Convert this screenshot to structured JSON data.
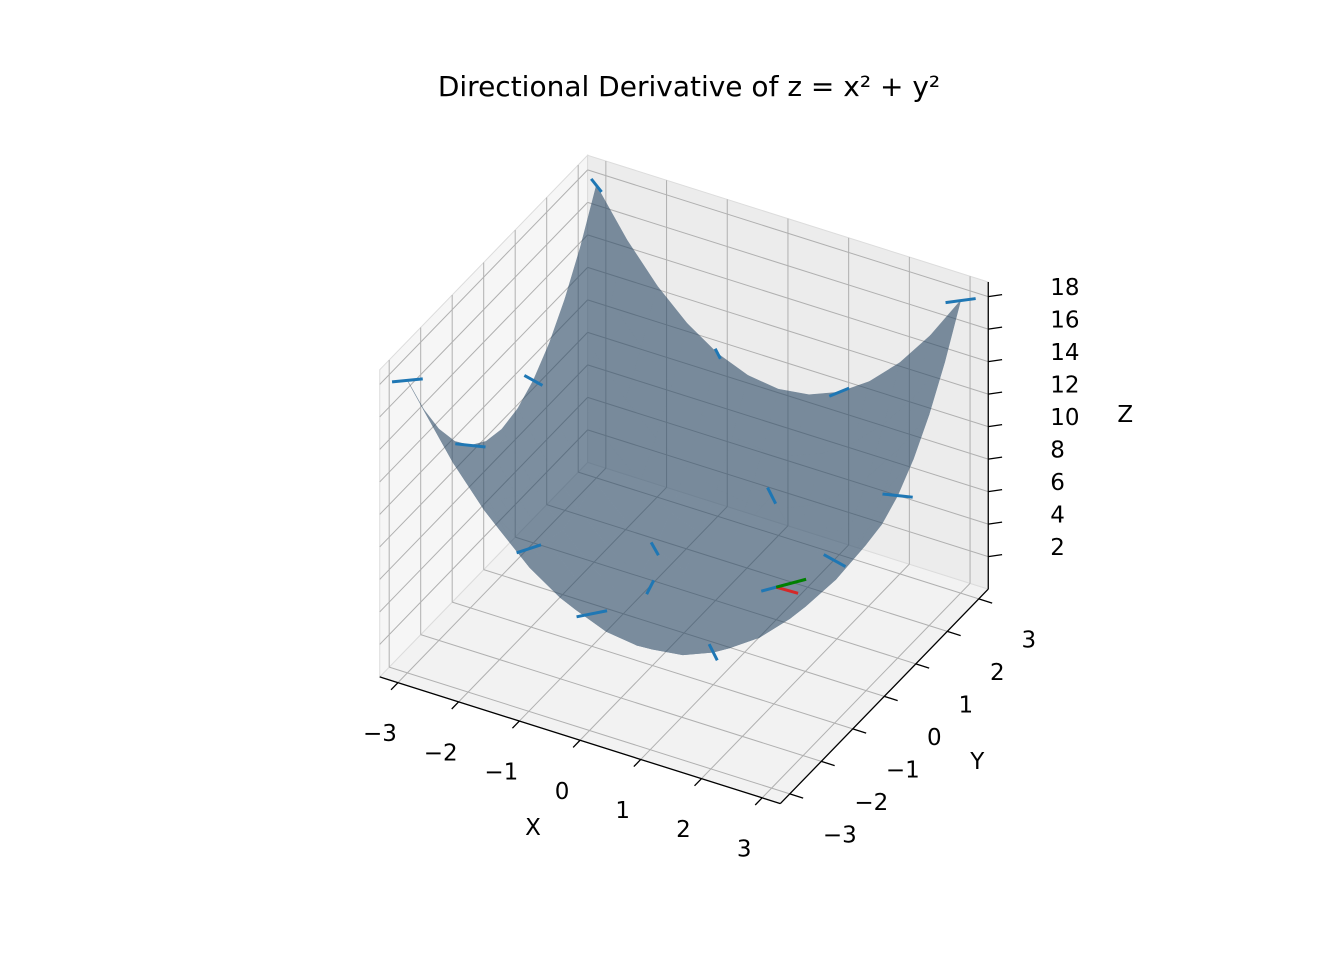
{
  "chart_data": {
    "type": "surface3d",
    "title": "Directional Derivative of z = x² + y²",
    "xlabel": "X",
    "ylabel": "Y",
    "zlabel": "Z",
    "xlim": [
      -3.3,
      3.3
    ],
    "ylim": [
      -3.3,
      3.3
    ],
    "zlim": [
      0,
      18.9
    ],
    "xticks": [
      {
        "value": -3,
        "label": "−3"
      },
      {
        "value": -2,
        "label": "−2"
      },
      {
        "value": -1,
        "label": "−1"
      },
      0,
      1,
      2,
      3
    ],
    "yticks": [
      {
        "value": -3,
        "label": "−3"
      },
      {
        "value": -2,
        "label": "−2"
      },
      {
        "value": -1,
        "label": "−1"
      },
      0,
      1,
      2,
      3
    ],
    "zticks": [
      2,
      4,
      6,
      8,
      10,
      12,
      14,
      16,
      18
    ],
    "grid": true,
    "surface": {
      "color": "#2c4a66",
      "alpha": 0.6,
      "x": [
        -3,
        -2.5,
        -2,
        -1.5,
        -1,
        -0.5,
        0,
        0.5,
        1,
        1.5,
        2,
        2.5,
        3
      ],
      "y": [
        -3,
        -2.5,
        -2,
        -1.5,
        -1,
        -0.5,
        0,
        0.5,
        1,
        1.5,
        2,
        2.5,
        3
      ],
      "z": [
        [
          18,
          15.25,
          13,
          11.25,
          10,
          9.25,
          9,
          9.25,
          10,
          11.25,
          13,
          15.25,
          18
        ],
        [
          15.25,
          12.5,
          10.25,
          8.5,
          7.25,
          6.5,
          6.25,
          6.5,
          7.25,
          8.5,
          10.25,
          12.5,
          15.25
        ],
        [
          13,
          10.25,
          8,
          6.25,
          5,
          4.25,
          4,
          4.25,
          5,
          6.25,
          8,
          10.25,
          13
        ],
        [
          11.25,
          8.5,
          6.25,
          4.5,
          3.25,
          2.5,
          2.25,
          2.5,
          3.25,
          4.5,
          6.25,
          8.5,
          11.25
        ],
        [
          10,
          7.25,
          5,
          3.25,
          2,
          1.25,
          1,
          1.25,
          2,
          3.25,
          5,
          7.25,
          10
        ],
        [
          9.25,
          6.5,
          4.25,
          2.5,
          1.25,
          0.5,
          0.25,
          0.5,
          1.25,
          2.5,
          4.25,
          6.5,
          9.25
        ],
        [
          9,
          6.25,
          4,
          2.25,
          1,
          0.25,
          0,
          0.25,
          1,
          2.25,
          4,
          6.25,
          9
        ],
        [
          9.25,
          6.5,
          4.25,
          2.5,
          1.25,
          0.5,
          0.25,
          0.5,
          1.25,
          2.5,
          4.25,
          6.5,
          9.25
        ],
        [
          10,
          7.25,
          5,
          3.25,
          2,
          1.25,
          1,
          1.25,
          2,
          3.25,
          5,
          7.25,
          10
        ],
        [
          11.25,
          8.5,
          6.25,
          4.5,
          3.25,
          2.5,
          2.25,
          2.5,
          3.25,
          4.5,
          6.25,
          8.5,
          11.25
        ],
        [
          13,
          10.25,
          8,
          6.25,
          5,
          4.25,
          4,
          4.25,
          5,
          6.25,
          8,
          10.25,
          13
        ],
        [
          15.25,
          12.5,
          10.25,
          8.5,
          7.25,
          6.5,
          6.25,
          6.5,
          7.25,
          8.5,
          10.25,
          12.5,
          15.25
        ],
        [
          18,
          15.25,
          13,
          11.25,
          10,
          9.25,
          9,
          9.25,
          10,
          11.25,
          13,
          15.25,
          18
        ]
      ]
    },
    "quiver": {
      "color": "#1f77b4",
      "x": [
        -3,
        -3,
        -3,
        -3,
        -1,
        -1,
        -1,
        -1,
        1,
        1,
        1,
        1,
        3,
        3,
        3,
        3
      ],
      "y": [
        -3,
        -1,
        1,
        3,
        -3,
        -1,
        1,
        3,
        -3,
        -1,
        1,
        3,
        -3,
        -1,
        1,
        3
      ],
      "z": [
        18,
        10,
        10,
        18,
        10,
        2,
        2,
        10,
        10,
        2,
        2,
        10,
        18,
        10,
        10,
        18
      ],
      "u": [
        -0.35,
        0.42,
        0.35,
        0.29,
        0.21,
        0.31,
        0.25,
        0.19,
        0.08,
        0.3,
        0.28,
        0.15,
        0.3,
        0.42,
        0.42,
        0.33
      ],
      "v": [
        -0.3,
        0.15,
        -0.1,
        -0.23,
        0.37,
        0.37,
        -0.25,
        -0.2,
        -0.38,
        -0.32,
        0.41,
        0.34,
        -0.32,
        -0.12,
        0.15,
        0.32
      ]
    },
    "vectors": [
      {
        "color": "#d62728",
        "x": 1,
        "y": 1,
        "z": 2,
        "u": 0.35,
        "v": 0.02
      },
      {
        "color": "#008000",
        "x": 1,
        "y": 1,
        "z": 2,
        "u": 0.28,
        "v": 0.41
      }
    ]
  }
}
